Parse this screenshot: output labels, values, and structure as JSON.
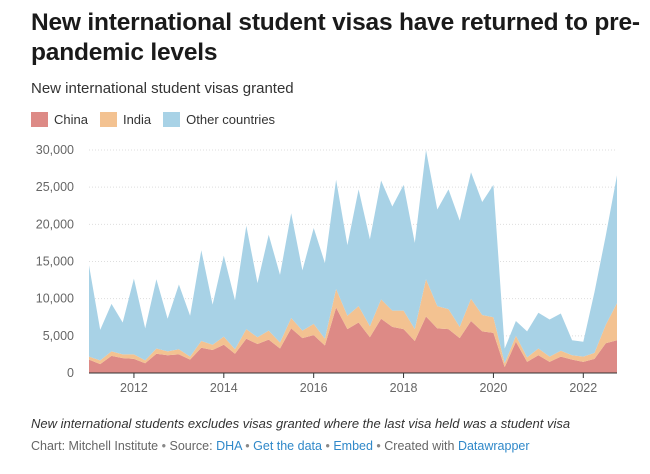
{
  "title": "New international student visas have returned to pre-pandemic levels",
  "chart_data": {
    "type": "area",
    "stacked": true,
    "title": "New international student visas granted",
    "xlabel": "",
    "ylabel": "",
    "xlim": [
      2011.0,
      2022.75
    ],
    "ylim": [
      0,
      30000
    ],
    "y_ticks": [
      0,
      5000,
      10000,
      15000,
      20000,
      25000,
      30000
    ],
    "y_tick_labels": [
      "0",
      "5,000",
      "10,000",
      "15,000",
      "20,000",
      "25,000",
      "30,000"
    ],
    "x_ticks": [
      2012,
      2014,
      2016,
      2018,
      2020,
      2022
    ],
    "x_tick_labels": [
      "2012",
      "2014",
      "2016",
      "2018",
      "2020",
      "2022"
    ],
    "grid": true,
    "legend_position": "top-left",
    "x": [
      2011.0,
      2011.25,
      2011.5,
      2011.75,
      2012.0,
      2012.25,
      2012.5,
      2012.75,
      2013.0,
      2013.25,
      2013.5,
      2013.75,
      2014.0,
      2014.25,
      2014.5,
      2014.75,
      2015.0,
      2015.25,
      2015.5,
      2015.75,
      2016.0,
      2016.25,
      2016.5,
      2016.75,
      2017.0,
      2017.25,
      2017.5,
      2017.75,
      2018.0,
      2018.25,
      2018.5,
      2018.75,
      2019.0,
      2019.25,
      2019.5,
      2019.75,
      2020.0,
      2020.25,
      2020.5,
      2020.75,
      2021.0,
      2021.25,
      2021.5,
      2021.75,
      2022.0,
      2022.25,
      2022.5,
      2022.75
    ],
    "series": [
      {
        "name": "China",
        "color": "#dd8a86",
        "values": [
          1800,
          1200,
          2300,
          2000,
          1900,
          1300,
          2600,
          2400,
          2500,
          1800,
          3400,
          3100,
          3800,
          2600,
          4600,
          3900,
          4500,
          3300,
          6000,
          4700,
          5100,
          3700,
          8800,
          5900,
          6800,
          4800,
          7300,
          6200,
          5900,
          4300,
          7600,
          6000,
          5900,
          4700,
          7000,
          5600,
          5400,
          800,
          4200,
          1500,
          2400,
          1500,
          2200,
          1800,
          1500,
          1900,
          4000,
          4400
        ]
      },
      {
        "name": "India",
        "color": "#f3c291",
        "values": [
          400,
          500,
          600,
          500,
          600,
          400,
          700,
          500,
          700,
          400,
          900,
          700,
          1100,
          600,
          1300,
          900,
          1200,
          800,
          1400,
          1000,
          1500,
          900,
          2500,
          1800,
          2200,
          1500,
          2600,
          2200,
          2500,
          1600,
          5000,
          3000,
          2700,
          1500,
          3000,
          2200,
          2100,
          500,
          800,
          600,
          900,
          700,
          800,
          600,
          700,
          800,
          2500,
          5000
        ]
      },
      {
        "name": "Other countries",
        "color": "#a8d2e6",
        "values": [
          12300,
          4100,
          6400,
          4300,
          10200,
          4300,
          9300,
          4400,
          8700,
          5500,
          12200,
          5400,
          10900,
          6600,
          13900,
          7300,
          12900,
          9100,
          14100,
          8100,
          12900,
          10200,
          14700,
          9500,
          15700,
          11700,
          16000,
          14000,
          16900,
          11600,
          17400,
          13000,
          16100,
          14300,
          17000,
          15200,
          17800,
          2000,
          2000,
          3500,
          4800,
          5000,
          5000,
          2000,
          2000,
          8200,
          12000,
          17200
        ]
      }
    ]
  },
  "footer": {
    "note": "New international students excludes visas granted where the last visa held was a student visa",
    "chart_by": "Chart: Mitchell Institute",
    "source_prefix": "Source:",
    "source_link": "DHA",
    "get_data": "Get the data",
    "embed": "Embed",
    "created_with": "Created with",
    "datawrapper": "Datawrapper",
    "separator": "•"
  }
}
